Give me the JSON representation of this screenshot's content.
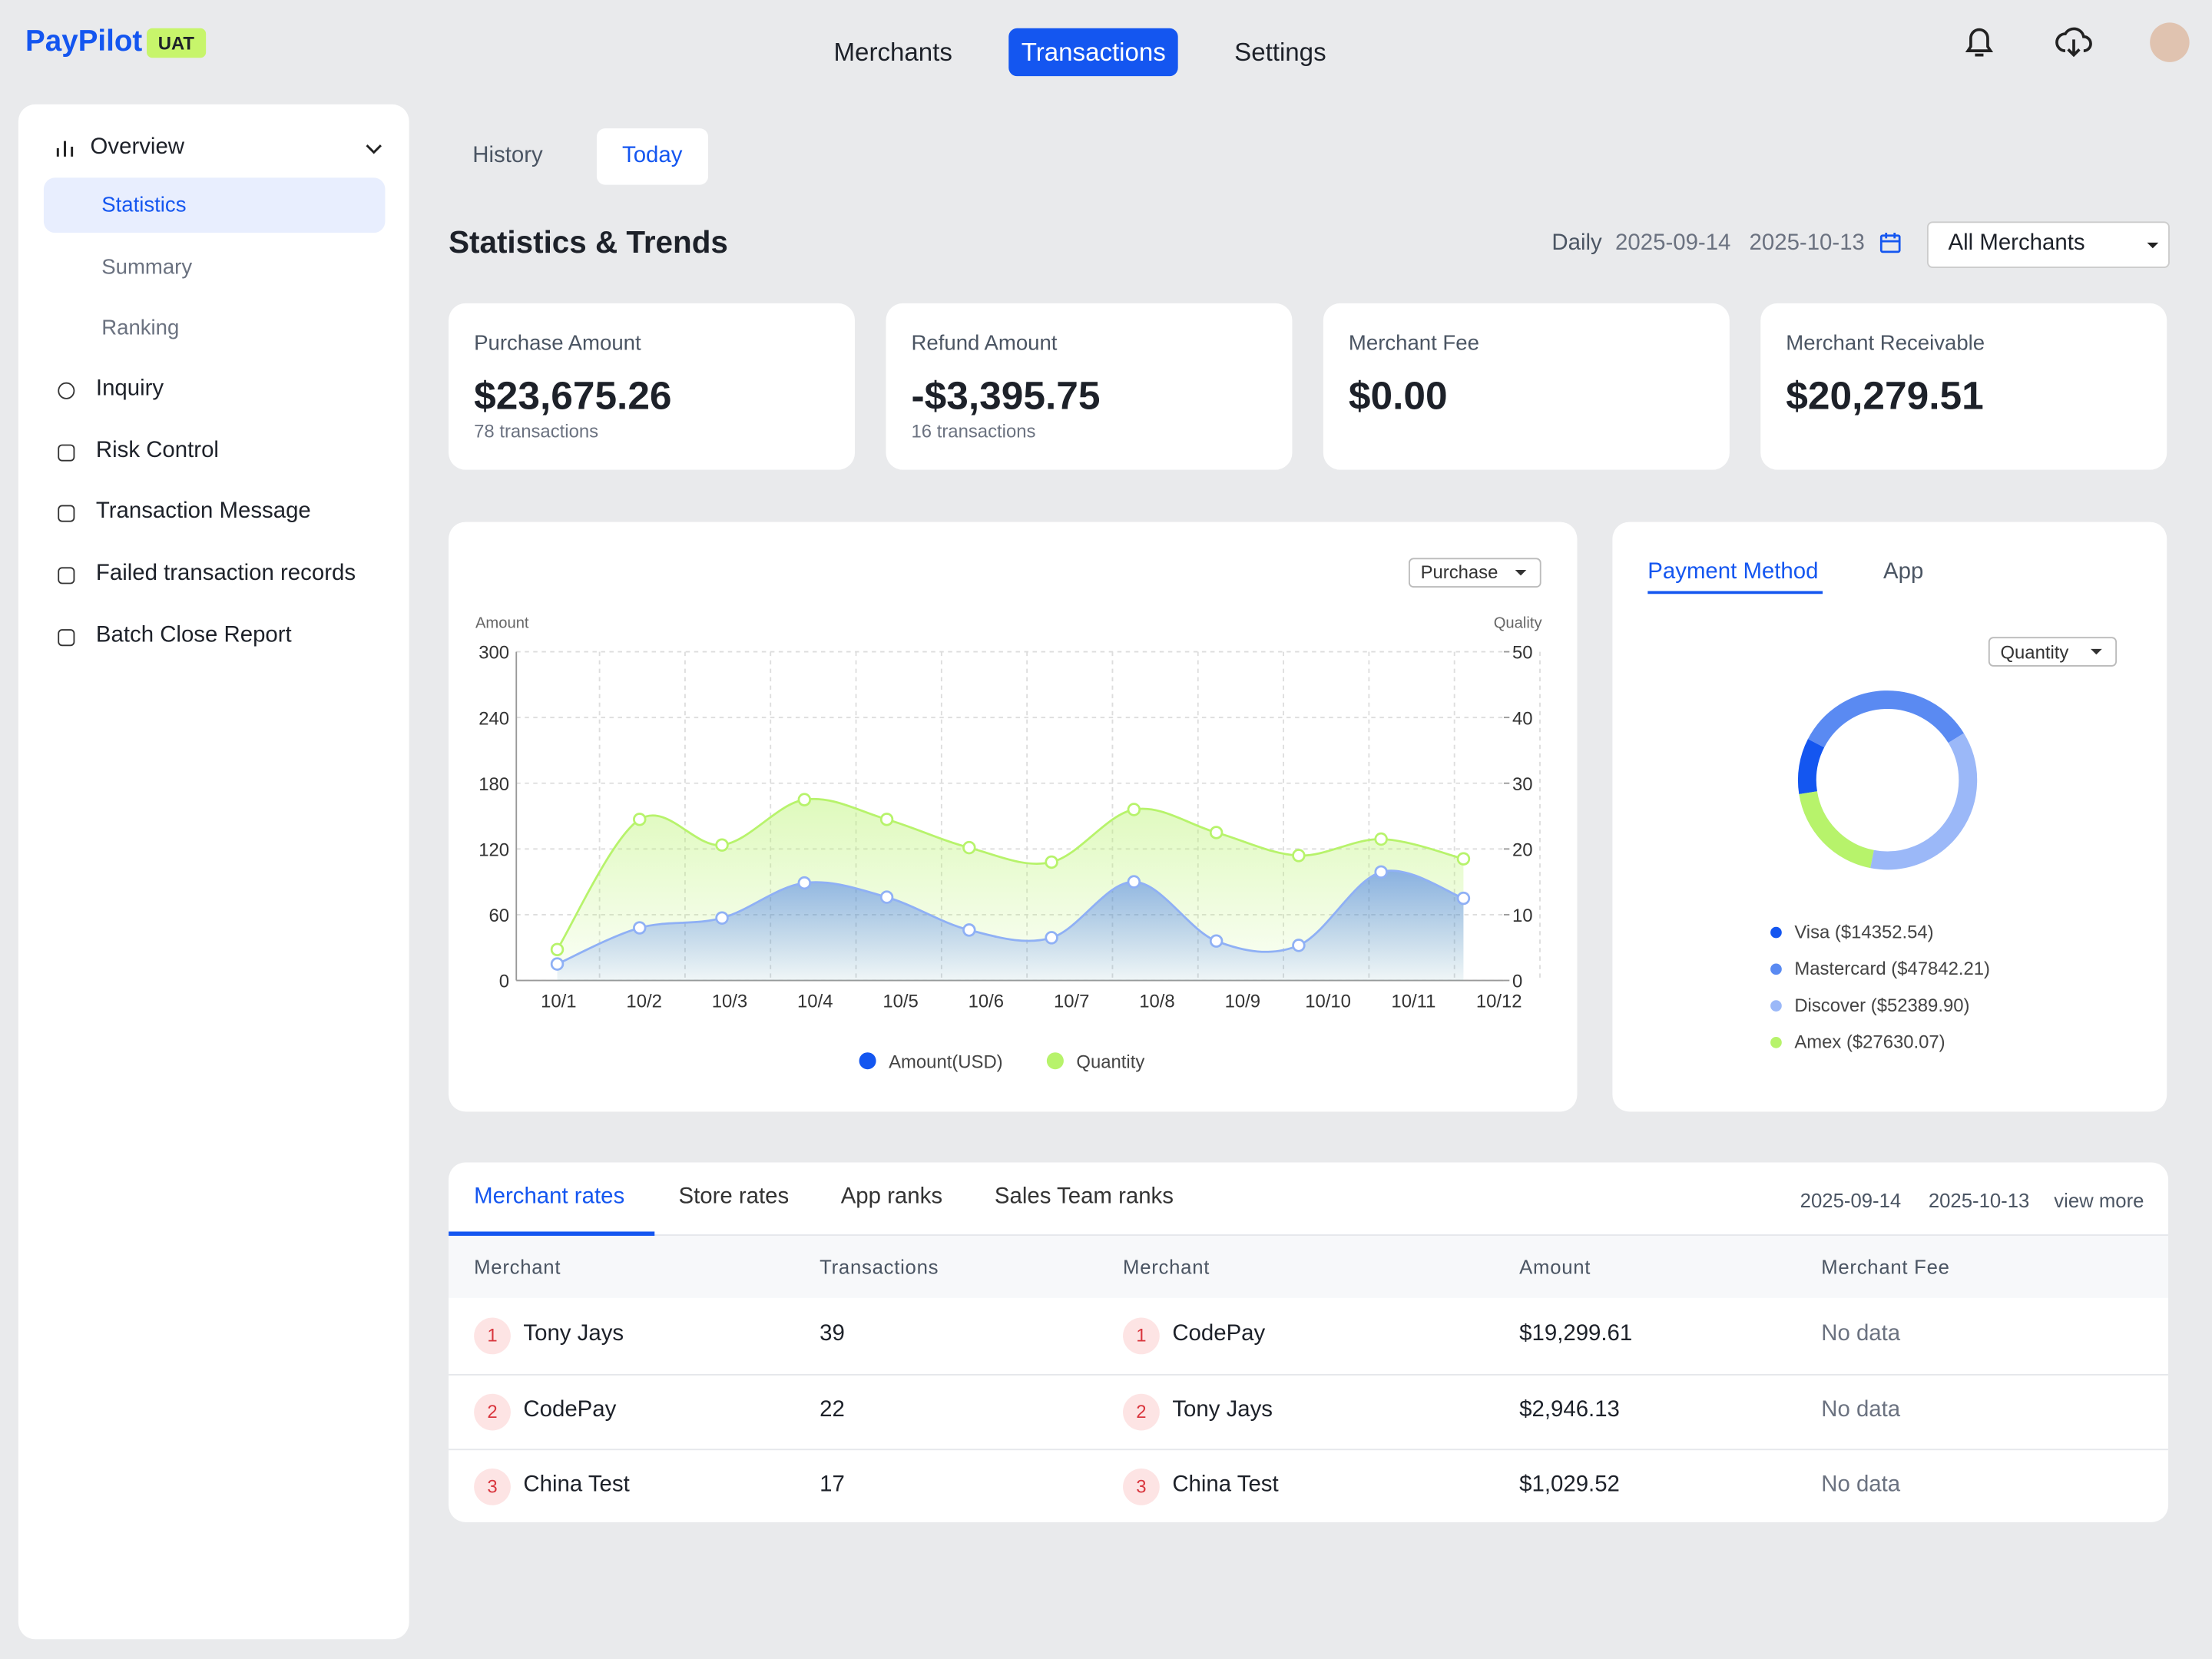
{
  "brand": "PayPilot",
  "env_tag": "UAT",
  "nav": [
    "Merchants",
    "Transactions",
    "Settings"
  ],
  "sidebar": {
    "group": "Overview",
    "sub_items": [
      "Statistics",
      "Summary",
      "Ranking"
    ],
    "items": [
      "Inquiry",
      "Risk Control",
      "Transaction Message",
      "Failed transaction records",
      "Batch Close Report"
    ]
  },
  "tabs": [
    "History",
    "Today"
  ],
  "page_title": "Statistics & Trends",
  "filter": {
    "period": "Daily",
    "start": "2025-09-14",
    "end": "2025-10-13",
    "merchant": "All Merchants"
  },
  "cards": [
    {
      "label": "Purchase Amount",
      "value": "$23,675.26",
      "sub": "78 transactions"
    },
    {
      "label": "Refund Amount",
      "value": "-$3,395.75",
      "sub": "16 transactions"
    },
    {
      "label": "Merchant Fee",
      "value": "$0.00"
    },
    {
      "label": "Merchant Receivable",
      "value": "$20,279.51"
    }
  ],
  "trend_chart": {
    "type": "line",
    "dropdown": "Purchase",
    "y_label": "Amount",
    "y2_label": "Quality",
    "categories": [
      "10/1",
      "10/2",
      "10/3",
      "10/4",
      "10/5",
      "10/6",
      "10/7",
      "10/8",
      "10/9",
      "10/10",
      "10/11",
      "10/12"
    ],
    "series": [
      {
        "name": "Amount(USD)",
        "color": "#1456f0",
        "values": [
          15,
          48,
          57,
          89,
          76,
          46,
          39,
          90,
          36,
          32,
          99,
          75
        ]
      },
      {
        "name": "Quantity",
        "color": "#b7f36b",
        "axis": "y2",
        "values": [
          4.7,
          24.5,
          20.6,
          27.5,
          24.5,
          20.2,
          18,
          26,
          22.5,
          19,
          21.5,
          18.5
        ]
      }
    ],
    "ylim": [
      0,
      300
    ],
    "yticks": [
      0,
      60,
      120,
      180,
      240,
      300
    ],
    "y2lim": [
      0,
      50
    ],
    "y2ticks": [
      0,
      10,
      20,
      30,
      40,
      50
    ],
    "grid": true
  },
  "payment_chart": {
    "type": "pie",
    "tabs": [
      "Payment Method",
      "App"
    ],
    "dropdown": "Quantity",
    "categories": [
      "Visa",
      "Mastercard",
      "Discover",
      "Amex"
    ],
    "values": [
      14352.54,
      47842.21,
      52389.9,
      27630.07
    ],
    "value_labels": [
      "Visa ($14352.54)",
      "Mastercard ($47842.21)",
      "Discover ($52389.90)",
      "Amex ($27630.07)"
    ],
    "colors": [
      "#1456f0",
      "#5a8af2",
      "#9bb8f8",
      "#b7f36b"
    ]
  },
  "ranking": {
    "tabs": [
      "Merchant rates",
      "Store rates",
      "App ranks",
      "Sales Team ranks"
    ],
    "start": "2025-09-14",
    "end": "2025-10-13",
    "view_more": "view more",
    "columns": [
      "Merchant",
      "Transactions",
      "Merchant",
      "Amount",
      "Merchant Fee"
    ],
    "rows": [
      [
        "1",
        "Tony Jays",
        "39",
        "1",
        "CodePay",
        "$19,299.61",
        "No data"
      ],
      [
        "2",
        "CodePay",
        "22",
        "2",
        "Tony Jays",
        "$2,946.13",
        "No data"
      ],
      [
        "3",
        "China Test",
        "17",
        "3",
        "China Test",
        "$1,029.52",
        "No data"
      ]
    ]
  }
}
